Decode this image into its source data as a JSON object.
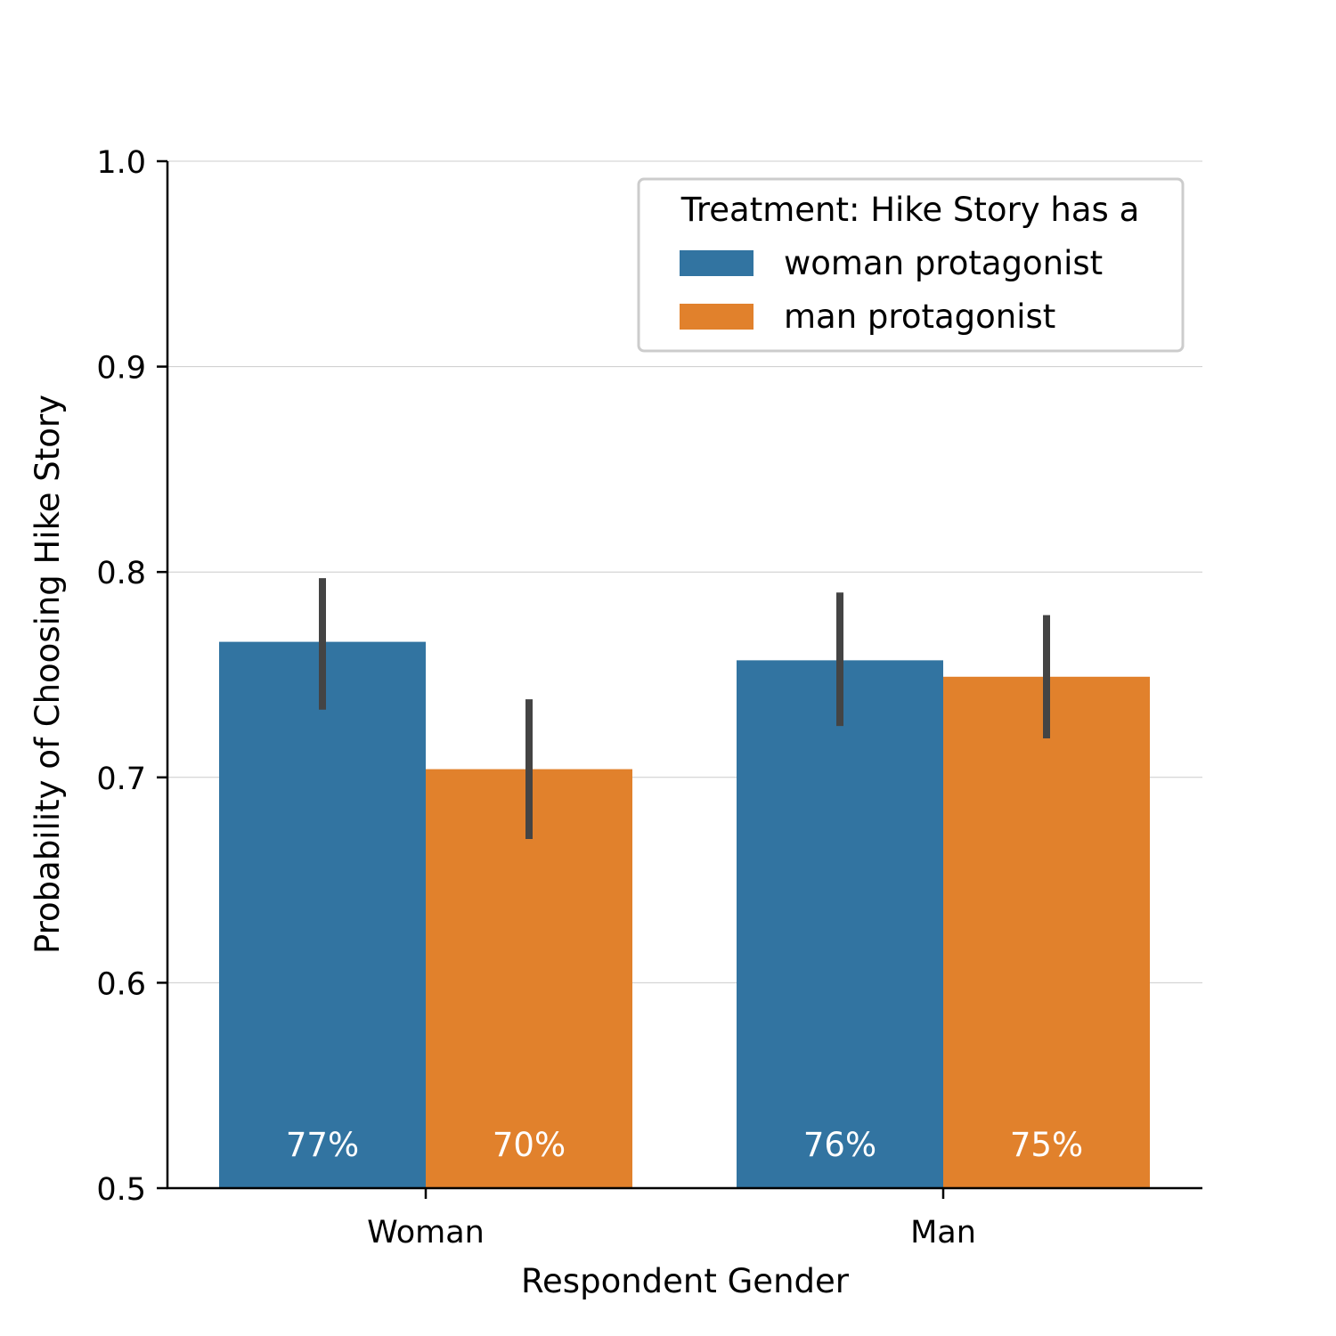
{
  "chart_data": {
    "type": "bar",
    "title": "",
    "xlabel": "Respondent Gender",
    "ylabel": "Probability of Choosing Hike Story",
    "categories": [
      "Woman",
      "Man"
    ],
    "ylim": [
      0.5,
      1.0
    ],
    "yticks": [
      "0.5",
      "0.6",
      "0.7",
      "0.8",
      "0.9",
      "1.0"
    ],
    "grid": "horizontal",
    "legend": {
      "title": "Treatment: Hike Story has a",
      "placement": "top-right"
    },
    "series": [
      {
        "name": "woman protagonist",
        "color": "#3274a1",
        "values": [
          0.766,
          0.757
        ],
        "ci_low": [
          0.733,
          0.725
        ],
        "ci_high": [
          0.797,
          0.79
        ],
        "labels": [
          "77%",
          "76%"
        ]
      },
      {
        "name": "man protagonist",
        "color": "#e1812c",
        "values": [
          0.704,
          0.749
        ],
        "ci_low": [
          0.67,
          0.719
        ],
        "ci_high": [
          0.738,
          0.779
        ],
        "labels": [
          "70%",
          "75%"
        ]
      }
    ],
    "errorbar_color": "#444444"
  }
}
